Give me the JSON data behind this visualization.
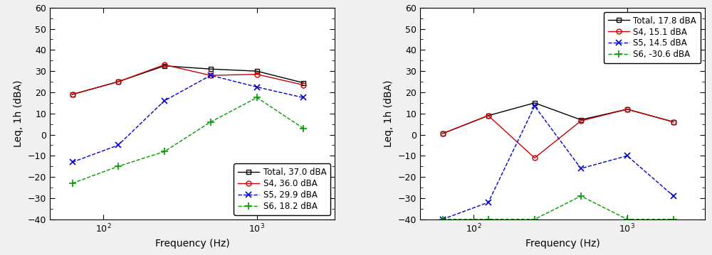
{
  "left": {
    "freqs": [
      63,
      125,
      250,
      500,
      1000,
      2000
    ],
    "total": [
      19,
      25,
      32.5,
      31,
      30,
      24.5
    ],
    "S4": [
      19,
      25,
      33,
      28,
      28.5,
      23.5
    ],
    "S5": [
      -13,
      -5,
      16,
      28,
      22.5,
      17.5
    ],
    "S6": [
      -23,
      -15,
      -8,
      6,
      17.5,
      3
    ],
    "legend_total": "Total, 37.0 dBA",
    "legend_S4": "S4, 36.0 dBA",
    "legend_S5": "S5, 29.9 dBA",
    "legend_S6": "S6, 18.2 dBA"
  },
  "right": {
    "freqs": [
      63,
      125,
      250,
      500,
      1000,
      2000
    ],
    "total": [
      0.5,
      9,
      15,
      7,
      12,
      6
    ],
    "S4": [
      0.5,
      9,
      -11,
      6.5,
      12,
      6
    ],
    "S5": [
      -40,
      -32,
      13.5,
      -16,
      -10,
      -29
    ],
    "S6": [
      -40,
      -40,
      -40,
      -29,
      -40,
      -40
    ],
    "legend_total": "Total, 17.8 dBA",
    "legend_S4": "S4, 15.1 dBA",
    "legend_S5": "S5, 14.5 dBA",
    "legend_S6": "S6, -30.6 dBA"
  },
  "ylabel": "Leq, 1h (dBA)",
  "xlabel": "Frequency (Hz)",
  "ylim": [
    -40,
    60
  ],
  "yticks": [
    -40,
    -30,
    -20,
    -10,
    0,
    10,
    20,
    30,
    40,
    50,
    60
  ],
  "color_total": "#000000",
  "color_S4": "#cc0000",
  "color_S5": "#0000cc",
  "color_S6": "#009900",
  "bg_color": "#ffffff",
  "fig_bg_color": "#f0f0f0"
}
